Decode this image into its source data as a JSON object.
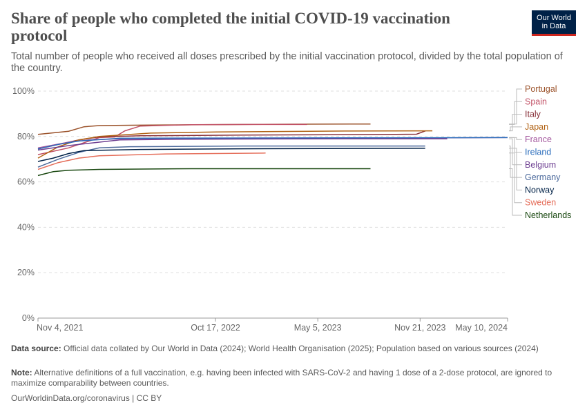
{
  "header": {
    "title": "Share of people who completed the initial COVID-19 vaccination protocol",
    "subtitle": "Total number of people who received all doses prescribed by the initial vaccination protocol, divided by the total population of the country.",
    "logo_line1": "Our World",
    "logo_line2": "in Data"
  },
  "footer": {
    "source_label": "Data source:",
    "source_text": "Official data collated by Our World in Data (2024); World Health Organisation (2025); Population based on various sources (2024)",
    "note_label": "Note:",
    "note_text": "Alternative definitions of a full vaccination, e.g. having been infected with SARS-CoV-2 and having 1 dose of a 2-dose protocol, are ignored to maximize comparability between countries.",
    "url": "OurWorldinData.org/coronavirus | CC BY"
  },
  "colors": {
    "logo_bg": "#002147",
    "logo_accent": "#ce261e",
    "grid": "#dddddd",
    "axis_text": "#666666"
  },
  "chart_data": {
    "type": "line",
    "title": "Share of people who completed the initial COVID-19 vaccination protocol",
    "xlabel": "",
    "ylabel": "",
    "x_ticks": [
      "Nov 4, 2021",
      "Oct 17, 2022",
      "May 5, 2023",
      "Nov 21, 2023",
      "May 10, 2024"
    ],
    "x_tick_days": [
      0,
      347,
      547,
      747,
      918
    ],
    "x_domain_days": [
      0,
      918
    ],
    "ylim": [
      0,
      100
    ],
    "y_ticks": [
      "0%",
      "20%",
      "40%",
      "60%",
      "80%",
      "100%"
    ],
    "y_tick_values": [
      0,
      20,
      40,
      60,
      80,
      100
    ],
    "series": [
      {
        "name": "Portugal",
        "color": "#9a5129",
        "points": [
          [
            0,
            80.9
          ],
          [
            60,
            82.3
          ],
          [
            90,
            84.3
          ],
          [
            120,
            84.8
          ],
          [
            200,
            85.0
          ],
          [
            400,
            85.3
          ],
          [
            500,
            85.4
          ],
          [
            650,
            85.5
          ]
        ]
      },
      {
        "name": "Spain",
        "color": "#c15065",
        "points": [
          [
            0,
            72.0
          ],
          [
            60,
            75.0
          ],
          [
            120,
            79.5
          ],
          [
            150,
            79.8
          ],
          [
            170,
            82.5
          ],
          [
            200,
            84.6
          ],
          [
            300,
            85.2
          ],
          [
            420,
            85.3
          ],
          [
            526,
            85.3
          ]
        ]
      },
      {
        "name": "Italy",
        "color": "#883039",
        "points": [
          [
            0,
            74.5
          ],
          [
            40,
            76.5
          ],
          [
            80,
            78.5
          ],
          [
            120,
            79.8
          ],
          [
            200,
            80.3
          ],
          [
            400,
            80.6
          ],
          [
            700,
            80.9
          ],
          [
            740,
            81.0
          ],
          [
            758,
            82.5
          ]
        ]
      },
      {
        "name": "Japan",
        "color": "#b16214",
        "points": [
          [
            0,
            70.5
          ],
          [
            40,
            75.5
          ],
          [
            80,
            78.5
          ],
          [
            120,
            80.0
          ],
          [
            220,
            81.5
          ],
          [
            350,
            82.0
          ],
          [
            600,
            82.4
          ],
          [
            771,
            82.5
          ]
        ]
      },
      {
        "name": "France",
        "color": "#a2559c",
        "points": [
          [
            0,
            75.0
          ],
          [
            60,
            77.5
          ],
          [
            100,
            78.5
          ],
          [
            160,
            79.0
          ],
          [
            260,
            79.2
          ],
          [
            500,
            79.3
          ],
          [
            800,
            79.4
          ],
          [
            918,
            79.5
          ]
        ]
      },
      {
        "name": "Ireland",
        "color": "#286bbb",
        "points": [
          [
            0,
            74.5
          ],
          [
            40,
            76.5
          ],
          [
            80,
            78.0
          ],
          [
            160,
            79.2
          ],
          [
            300,
            79.3
          ],
          [
            600,
            79.4
          ],
          [
            918,
            79.5
          ]
        ]
      },
      {
        "name": "Belgium",
        "color": "#6d3e91",
        "points": [
          [
            0,
            74.0
          ],
          [
            60,
            76.0
          ],
          [
            120,
            77.5
          ],
          [
            160,
            78.5
          ],
          [
            300,
            78.8
          ],
          [
            600,
            79.0
          ],
          [
            800,
            79.0
          ]
        ]
      },
      {
        "name": "Germany",
        "color": "#4c6a9c",
        "points": [
          [
            0,
            66.5
          ],
          [
            40,
            70.0
          ],
          [
            80,
            73.0
          ],
          [
            120,
            75.0
          ],
          [
            180,
            75.5
          ],
          [
            400,
            75.8
          ],
          [
            757,
            75.8
          ]
        ]
      },
      {
        "name": "Norway",
        "color": "#002147",
        "points": [
          [
            0,
            69.0
          ],
          [
            30,
            70.5
          ],
          [
            60,
            72.5
          ],
          [
            90,
            73.8
          ],
          [
            200,
            74.3
          ],
          [
            400,
            74.6
          ],
          [
            757,
            74.8
          ]
        ]
      },
      {
        "name": "Sweden",
        "color": "#e56e5a",
        "points": [
          [
            0,
            65.5
          ],
          [
            40,
            68.5
          ],
          [
            80,
            70.5
          ],
          [
            120,
            71.5
          ],
          [
            250,
            72.3
          ],
          [
            445,
            72.7
          ]
        ]
      },
      {
        "name": "Netherlands",
        "color": "#18470f",
        "points": [
          [
            0,
            62.8
          ],
          [
            30,
            64.5
          ],
          [
            60,
            65.1
          ],
          [
            120,
            65.5
          ],
          [
            300,
            65.8
          ],
          [
            500,
            65.8
          ],
          [
            650,
            65.8
          ]
        ]
      }
    ],
    "legend": [
      {
        "label": "Portugal",
        "color": "#9a5129",
        "value": 85.5
      },
      {
        "label": "Spain",
        "color": "#c15065",
        "value": 85.3
      },
      {
        "label": "Italy",
        "color": "#883039",
        "value": 82.5
      },
      {
        "label": "Japan",
        "color": "#b16214",
        "value": 82.5
      },
      {
        "label": "France",
        "color": "#a2559c",
        "value": 79.5
      },
      {
        "label": "Ireland",
        "color": "#286bbb",
        "value": 79.5
      },
      {
        "label": "Belgium",
        "color": "#6d3e91",
        "value": 79.0
      },
      {
        "label": "Germany",
        "color": "#4c6a9c",
        "value": 75.8
      },
      {
        "label": "Norway",
        "color": "#002147",
        "value": 74.8
      },
      {
        "label": "Sweden",
        "color": "#e56e5a",
        "value": 72.7
      },
      {
        "label": "Netherlands",
        "color": "#18470f",
        "value": 65.8
      }
    ]
  }
}
